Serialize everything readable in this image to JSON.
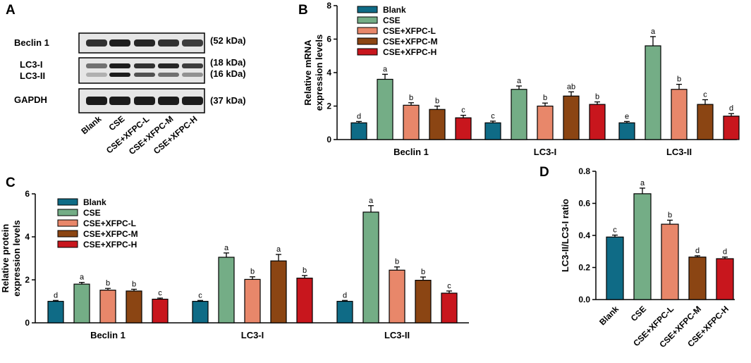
{
  "panels": {
    "a": "A",
    "b": "B",
    "c": "C",
    "d": "D"
  },
  "colors": {
    "Blank": "#0f6b86",
    "CSE": "#74ad86",
    "CSE+XFPC-L": "#e8876a",
    "CSE+XFPC-M": "#8b4513",
    "CSE+XFPC-H": "#c8161d"
  },
  "blot": {
    "groups": [
      "Blank",
      "CSE",
      "CSE+XFPC-L",
      "CSE+XFPC-M",
      "CSE+XFPC-H"
    ],
    "rows": [
      {
        "labels": [
          "Beclin 1"
        ],
        "sizes": [
          "(52 kDa)"
        ]
      },
      {
        "labels": [
          "LC3-I",
          "LC3-II"
        ],
        "sizes": [
          "(18 kDa)",
          "(16 kDa)"
        ]
      },
      {
        "labels": [
          "GAPDH"
        ],
        "sizes": [
          "(37 kDa)"
        ]
      }
    ]
  },
  "chart_data": [
    {
      "panel": "B",
      "type": "bar",
      "ylabel": "Relative mRNA expression levels",
      "ylabel_lines": [
        "Relative mRNA",
        "expression levels"
      ],
      "ylim": [
        0,
        8
      ],
      "yticks": [
        "0",
        "2",
        "4",
        "6",
        "8"
      ],
      "categories": [
        "Beclin 1",
        "LC3-I",
        "LC3-II"
      ],
      "series": [
        {
          "name": "Blank",
          "values": [
            1.0,
            1.0,
            1.0
          ],
          "errors": [
            0.08,
            0.1,
            0.08
          ],
          "letters": [
            "d",
            "c",
            "e"
          ]
        },
        {
          "name": "CSE",
          "values": [
            3.6,
            3.0,
            5.6
          ],
          "errors": [
            0.3,
            0.2,
            0.55
          ],
          "letters": [
            "a",
            "a",
            "a"
          ]
        },
        {
          "name": "CSE+XFPC-L",
          "values": [
            2.05,
            2.0,
            3.0
          ],
          "errors": [
            0.15,
            0.18,
            0.3
          ],
          "letters": [
            "b",
            "b",
            "b"
          ]
        },
        {
          "name": "CSE+XFPC-M",
          "values": [
            1.8,
            2.6,
            2.1
          ],
          "errors": [
            0.2,
            0.25,
            0.28
          ],
          "letters": [
            "b",
            "ab",
            "c"
          ]
        },
        {
          "name": "CSE+XFPC-H",
          "values": [
            1.3,
            2.1,
            1.4
          ],
          "errors": [
            0.15,
            0.15,
            0.15
          ],
          "letters": [
            "c",
            "b",
            "d"
          ]
        }
      ]
    },
    {
      "panel": "C",
      "type": "bar",
      "ylabel": "Relative protein expression levels",
      "ylabel_lines": [
        "Relative protein",
        "expression levels"
      ],
      "ylim": [
        0,
        6
      ],
      "yticks": [
        "0",
        "2",
        "4",
        "6"
      ],
      "categories": [
        "Beclin 1",
        "LC3-I",
        "LC3-II"
      ],
      "series": [
        {
          "name": "Blank",
          "values": [
            1.0,
            1.0,
            1.0
          ],
          "errors": [
            0.04,
            0.04,
            0.04
          ],
          "letters": [
            "d",
            "c",
            "d"
          ]
        },
        {
          "name": "CSE",
          "values": [
            1.8,
            3.05,
            5.15
          ],
          "errors": [
            0.08,
            0.2,
            0.3
          ],
          "letters": [
            "a",
            "a",
            "a"
          ]
        },
        {
          "name": "CSE+XFPC-L",
          "values": [
            1.52,
            2.02,
            2.45
          ],
          "errors": [
            0.08,
            0.12,
            0.15
          ],
          "letters": [
            "b",
            "b",
            "b"
          ]
        },
        {
          "name": "CSE+XFPC-M",
          "values": [
            1.48,
            2.88,
            1.98
          ],
          "errors": [
            0.08,
            0.3,
            0.15
          ],
          "letters": [
            "b",
            "a",
            "b"
          ]
        },
        {
          "name": "CSE+XFPC-H",
          "values": [
            1.1,
            2.08,
            1.38
          ],
          "errors": [
            0.05,
            0.12,
            0.1
          ],
          "letters": [
            "c",
            "b",
            "c"
          ]
        }
      ]
    },
    {
      "panel": "D",
      "type": "bar",
      "ylabel": "LC3-II/LC3-I ratio",
      "ylim": [
        0,
        0.8
      ],
      "yticks": [
        "0.0",
        "0.2",
        "0.4",
        "0.6",
        "0.8"
      ],
      "categories": [
        "Blank",
        "CSE",
        "CSE+XFPC-L",
        "CSE+XFPC-M",
        "CSE+XFPC-H"
      ],
      "values": [
        0.39,
        0.66,
        0.47,
        0.265,
        0.255
      ],
      "errors": [
        0.012,
        0.035,
        0.025,
        0.008,
        0.01
      ],
      "letters": [
        "c",
        "a",
        "b",
        "d",
        "d"
      ]
    }
  ]
}
